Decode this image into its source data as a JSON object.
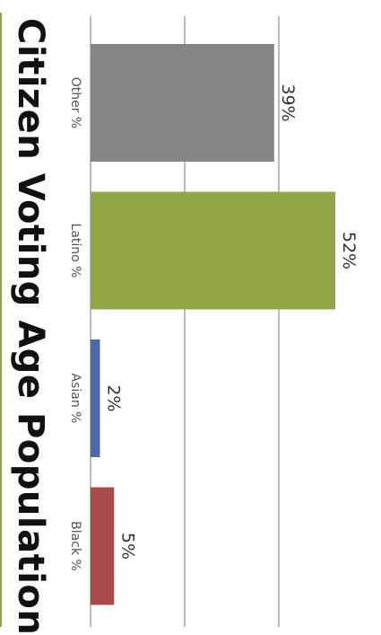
{
  "title": "Citizen Voting Age Population",
  "colors": {
    "accent_line": "#8fa84a",
    "grid": "#bbbbbb"
  },
  "chart_data": {
    "type": "bar",
    "orientation": "horizontal",
    "title": "Citizen Voting Age Population",
    "categories": [
      "Other %",
      "Latino %",
      "Asian %",
      "Black %"
    ],
    "values": [
      39,
      52,
      2,
      5
    ],
    "value_labels": [
      "39%",
      "52%",
      "2%",
      "5%"
    ],
    "colors": [
      "#858585",
      "#92a847",
      "#4a6aa8",
      "#aa4a4c"
    ],
    "xlim": [
      0,
      60
    ],
    "grid": true,
    "text_rotation": "90deg clockwise"
  }
}
